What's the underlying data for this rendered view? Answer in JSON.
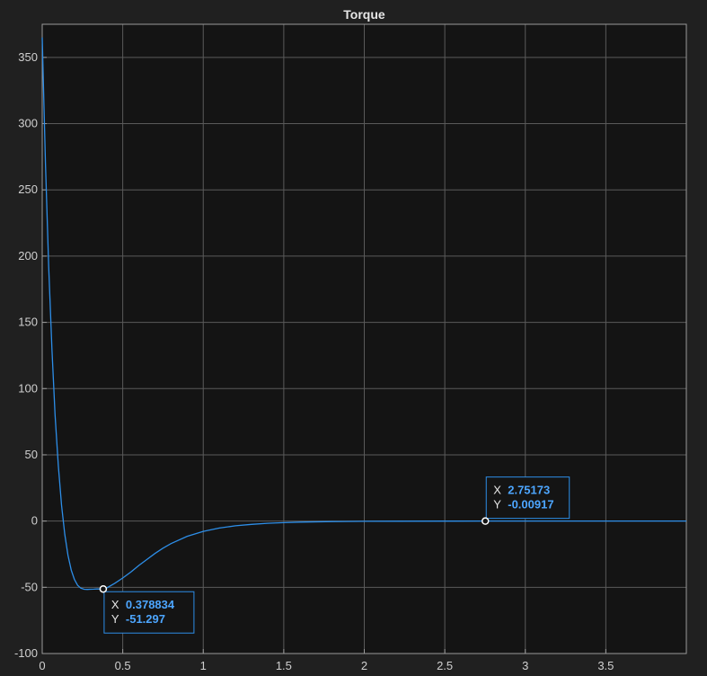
{
  "chart_data": {
    "type": "line",
    "title": "Torque",
    "xlabel": "",
    "ylabel": "",
    "xlim": [
      0,
      4
    ],
    "ylim": [
      -100,
      375
    ],
    "grid": true,
    "x_ticks": [
      0,
      0.5,
      1,
      1.5,
      2,
      2.5,
      3,
      3.5
    ],
    "x_tick_labels": [
      "0",
      "0.5",
      "1",
      "1.5",
      "2",
      "2.5",
      "3",
      "3.5"
    ],
    "y_ticks": [
      -100,
      -50,
      0,
      50,
      100,
      150,
      200,
      250,
      300,
      350
    ],
    "y_tick_labels": [
      "-100",
      "-50",
      "0",
      "50",
      "100",
      "150",
      "200",
      "250",
      "300",
      "350"
    ],
    "series": [
      {
        "color": "#2d8ee8",
        "x": [
          0,
          0.02,
          0.04,
          0.06,
          0.08,
          0.1,
          0.12,
          0.14,
          0.16,
          0.18,
          0.2,
          0.22,
          0.24,
          0.26,
          0.28,
          0.3,
          0.32,
          0.34,
          0.36,
          0.3788,
          0.4,
          0.45,
          0.5,
          0.55,
          0.6,
          0.65,
          0.7,
          0.75,
          0.8,
          0.9,
          1.0,
          1.1,
          1.2,
          1.3,
          1.4,
          1.5,
          1.6,
          1.8,
          2.0,
          2.2,
          2.5,
          2.75,
          3.0,
          3.5,
          4.0
        ],
        "y": [
          365,
          270,
          192,
          130,
          80,
          42,
          12,
          -10,
          -26,
          -37,
          -44,
          -48.5,
          -50.7,
          -51.5,
          -51.6,
          -51.5,
          -51.4,
          -51.3,
          -51.3,
          -51.3,
          -50.5,
          -47,
          -43,
          -38.5,
          -33.5,
          -29,
          -24.5,
          -20.5,
          -17,
          -11.5,
          -7.8,
          -5.3,
          -3.6,
          -2.5,
          -1.7,
          -1.2,
          -0.8,
          -0.4,
          -0.2,
          -0.1,
          -0.04,
          -0.009,
          -0.003,
          0,
          0
        ]
      }
    ],
    "datatips": [
      {
        "x_key": "X",
        "x_value": "0.378834",
        "y_key": "Y",
        "y_value": "-51.297",
        "x": 0.378834,
        "y": -51.297,
        "placement": "below-right"
      },
      {
        "x_key": "X",
        "x_value": "2.75173",
        "y_key": "Y",
        "y_value": "-0.00917",
        "x": 2.75173,
        "y": -0.00917,
        "placement": "above-right"
      }
    ],
    "colors": {
      "background": "#202020",
      "axes": "#141414",
      "grid": "#5a5a5a",
      "text": "#d0d0d0",
      "accent": "#4da6ff",
      "tip_border": "#2d8ee8"
    }
  }
}
